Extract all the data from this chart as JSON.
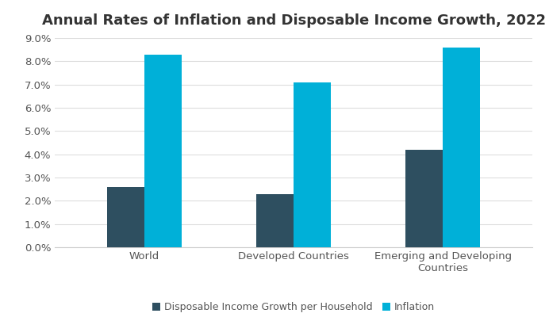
{
  "title": "Annual Rates of Inflation and Disposable Income Growth, 2022",
  "categories": [
    "World",
    "Developed Countries",
    "Emerging and Developing\nCountries"
  ],
  "disposable_income": [
    0.026,
    0.023,
    0.042
  ],
  "inflation": [
    0.083,
    0.071,
    0.086
  ],
  "color_income": "#2e4f60",
  "color_inflation": "#00b0d8",
  "ylim": [
    0,
    0.09
  ],
  "yticks": [
    0.0,
    0.01,
    0.02,
    0.03,
    0.04,
    0.05,
    0.06,
    0.07,
    0.08,
    0.09
  ],
  "legend_labels": [
    "Disposable Income Growth per Household",
    "Inflation"
  ],
  "bar_width": 0.25,
  "background_color": "#ffffff",
  "title_fontsize": 13,
  "tick_fontsize": 9.5,
  "legend_fontsize": 9
}
